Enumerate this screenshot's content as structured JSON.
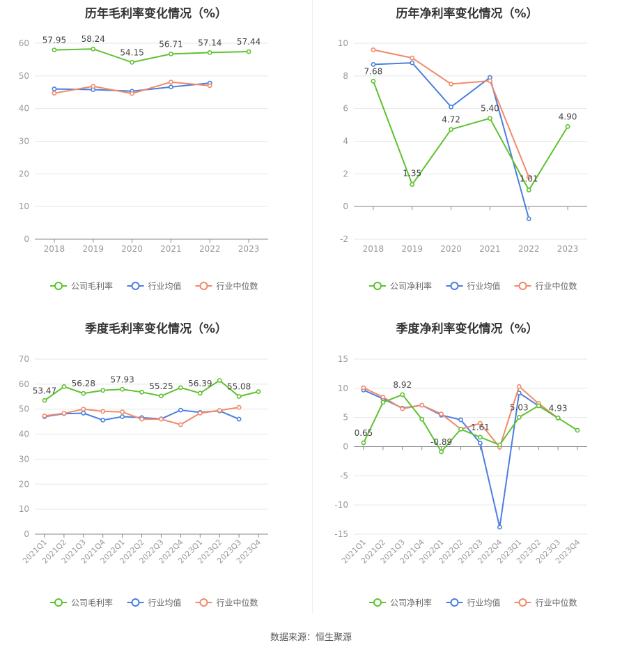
{
  "footer": "数据来源：恒生聚源",
  "colors": {
    "company": "#5ec22f",
    "industry_avg": "#4a7fe0",
    "industry_median": "#f08a6a",
    "grid": "#e6e6e6",
    "axis": "#888888",
    "tick_text": "#999999"
  },
  "chart_data": [
    {
      "type": "line",
      "title": "历年毛利率变化情况（%）",
      "categories": [
        "2018",
        "2019",
        "2020",
        "2021",
        "2022",
        "2023"
      ],
      "ylim": [
        0,
        60
      ],
      "yticks": [
        0,
        10,
        20,
        30,
        40,
        50,
        60
      ],
      "grid": true,
      "legend_position": "bottom",
      "series": [
        {
          "name": "公司毛利率",
          "color_key": "company",
          "values": [
            57.95,
            58.24,
            54.15,
            56.71,
            57.14,
            57.44
          ],
          "labels": [
            "57.95",
            "58.24",
            "54.15",
            "56.71",
            "57.14",
            "57.44"
          ]
        },
        {
          "name": "行业均值",
          "color_key": "industry_avg",
          "values": [
            46.0,
            45.8,
            45.3,
            46.6,
            47.8,
            null
          ]
        },
        {
          "name": "行业中位数",
          "color_key": "industry_median",
          "values": [
            44.7,
            46.8,
            44.6,
            48.1,
            47.0,
            null
          ]
        }
      ]
    },
    {
      "type": "line",
      "title": "历年净利率变化情况（%）",
      "categories": [
        "2018",
        "2019",
        "2020",
        "2021",
        "2022",
        "2023"
      ],
      "ylim": [
        -2,
        10
      ],
      "yticks": [
        -2,
        0,
        2,
        4,
        6,
        8,
        10
      ],
      "grid": true,
      "legend_position": "bottom",
      "series": [
        {
          "name": "公司净利率",
          "color_key": "company",
          "values": [
            7.68,
            1.35,
            4.72,
            5.4,
            1.01,
            4.9
          ],
          "labels": [
            "7.68",
            "1.35",
            "4.72",
            "5.40",
            "1.01",
            "4.90"
          ]
        },
        {
          "name": "行业均值",
          "color_key": "industry_avg",
          "values": [
            8.7,
            8.8,
            6.1,
            7.9,
            -0.75,
            null
          ]
        },
        {
          "name": "行业中位数",
          "color_key": "industry_median",
          "values": [
            9.6,
            9.1,
            7.5,
            7.7,
            1.8,
            null
          ]
        }
      ]
    },
    {
      "type": "line",
      "title": "季度毛利率变化情况（%）",
      "categories": [
        "2021Q1",
        "2021Q2",
        "2021Q3",
        "2021Q4",
        "2022Q1",
        "2022Q2",
        "2022Q3",
        "2022Q4",
        "2023Q1",
        "2023Q2",
        "2023Q3",
        "2023Q4"
      ],
      "ylim": [
        0,
        70
      ],
      "yticks": [
        0,
        10,
        20,
        30,
        40,
        50,
        60,
        70
      ],
      "grid": true,
      "legend_position": "bottom",
      "series": [
        {
          "name": "公司毛利率",
          "color_key": "company",
          "values": [
            53.47,
            59.0,
            56.28,
            57.5,
            57.93,
            56.8,
            55.25,
            58.6,
            56.39,
            61.5,
            55.08,
            57.0
          ],
          "labels": [
            "53.47",
            "",
            "56.28",
            "",
            "57.93",
            "",
            "55.25",
            "",
            "56.39",
            "",
            "55.08",
            ""
          ]
        },
        {
          "name": "行业均值",
          "color_key": "industry_avg",
          "values": [
            47.0,
            48.2,
            48.4,
            45.6,
            47.0,
            46.6,
            46.1,
            49.6,
            48.7,
            49.3,
            46.0,
            null
          ]
        },
        {
          "name": "行业中位数",
          "color_key": "industry_median",
          "values": [
            47.3,
            48.3,
            50.0,
            49.1,
            48.9,
            46.0,
            46.0,
            43.8,
            48.4,
            49.5,
            50.7,
            null
          ]
        }
      ]
    },
    {
      "type": "line",
      "title": "季度净利率变化情况（%）",
      "categories": [
        "2021Q1",
        "2021Q2",
        "2021Q3",
        "2021Q4",
        "2022Q1",
        "2022Q2",
        "2022Q3",
        "2022Q4",
        "2023Q1",
        "2023Q2",
        "2023Q3",
        "2023Q4"
      ],
      "ylim": [
        -15,
        15
      ],
      "yticks": [
        -15,
        -10,
        -5,
        0,
        5,
        10,
        15
      ],
      "grid": true,
      "legend_position": "bottom",
      "series": [
        {
          "name": "公司净利率",
          "color_key": "company",
          "values": [
            0.65,
            7.6,
            8.92,
            4.7,
            -0.89,
            3.0,
            1.61,
            0.3,
            5.03,
            7.0,
            4.93,
            2.8
          ],
          "labels": [
            "0.65",
            "",
            "8.92",
            "",
            "-0.89",
            "",
            "1.61",
            "",
            "5.03",
            "",
            "4.93",
            ""
          ]
        },
        {
          "name": "行业均值",
          "color_key": "industry_avg",
          "values": [
            9.7,
            8.2,
            6.6,
            7.1,
            5.4,
            4.6,
            0.6,
            -13.8,
            9.2,
            7.0,
            4.9,
            null
          ]
        },
        {
          "name": "行业中位数",
          "color_key": "industry_median",
          "values": [
            10.1,
            8.5,
            6.5,
            7.1,
            5.6,
            3.0,
            4.0,
            -0.1,
            10.3,
            7.4,
            4.9,
            null
          ]
        }
      ]
    }
  ]
}
